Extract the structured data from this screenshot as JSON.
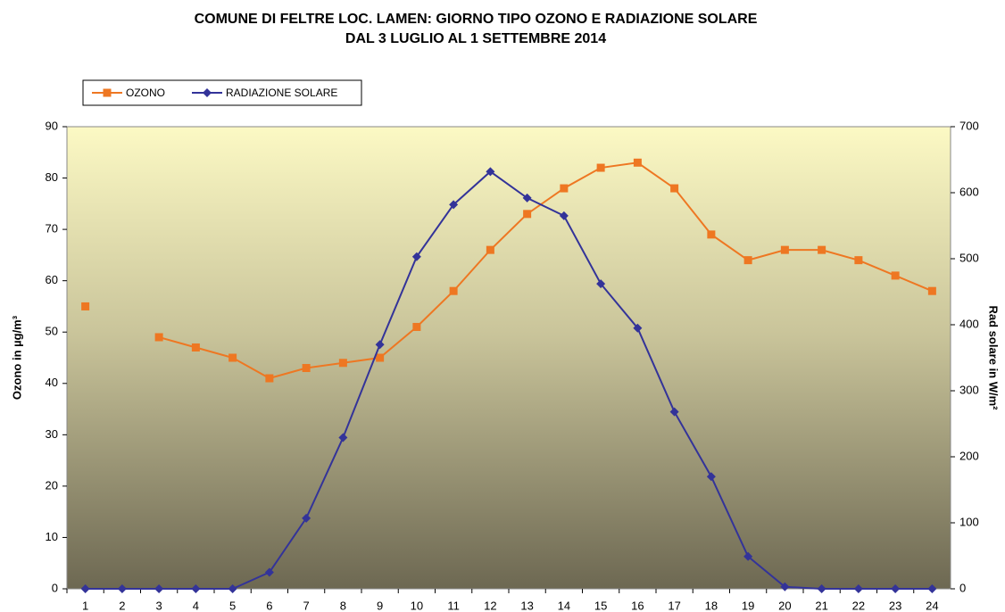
{
  "chart_data": {
    "type": "line",
    "title": "COMUNE DI FELTRE LOC. LAMEN: GIORNO TIPO OZONO E RADIAZIONE SOLARE",
    "subtitle": "DAL 3 LUGLIO AL 1 SETTEMBRE 2014",
    "y_label": "Ozono in µg/m³",
    "y2_label": "Rad solare in W/m²",
    "categories": [
      "1",
      "2",
      "3",
      "4",
      "5",
      "6",
      "7",
      "8",
      "9",
      "10",
      "11",
      "12",
      "13",
      "14",
      "15",
      "16",
      "17",
      "18",
      "19",
      "20",
      "21",
      "22",
      "23",
      "24"
    ],
    "series": [
      {
        "name": "OZONO",
        "color": "#ee7722",
        "marker": "square",
        "values": [
          55,
          null,
          49,
          47,
          45,
          41,
          43,
          44,
          45,
          51,
          58,
          66,
          73,
          78,
          82,
          83,
          78,
          69,
          64,
          66,
          66,
          64,
          61,
          58
        ]
      },
      {
        "name": "RADIAZIONE SOLARE",
        "color": "#333399",
        "marker": "diamond",
        "axis": "y2",
        "values": [
          0,
          0,
          0,
          0,
          0,
          25,
          107,
          229,
          370,
          503,
          582,
          632,
          592,
          565,
          462,
          395,
          268,
          170,
          49,
          3,
          0,
          0,
          0,
          0
        ]
      }
    ],
    "ylim": [
      0,
      90
    ],
    "yticks": [
      0,
      10,
      20,
      30,
      40,
      50,
      60,
      70,
      80,
      90
    ],
    "y2lim": [
      0,
      700
    ],
    "y2ticks": [
      0,
      100,
      200,
      300,
      400,
      500,
      600,
      700
    ],
    "grid": false,
    "legend": "top-left"
  }
}
